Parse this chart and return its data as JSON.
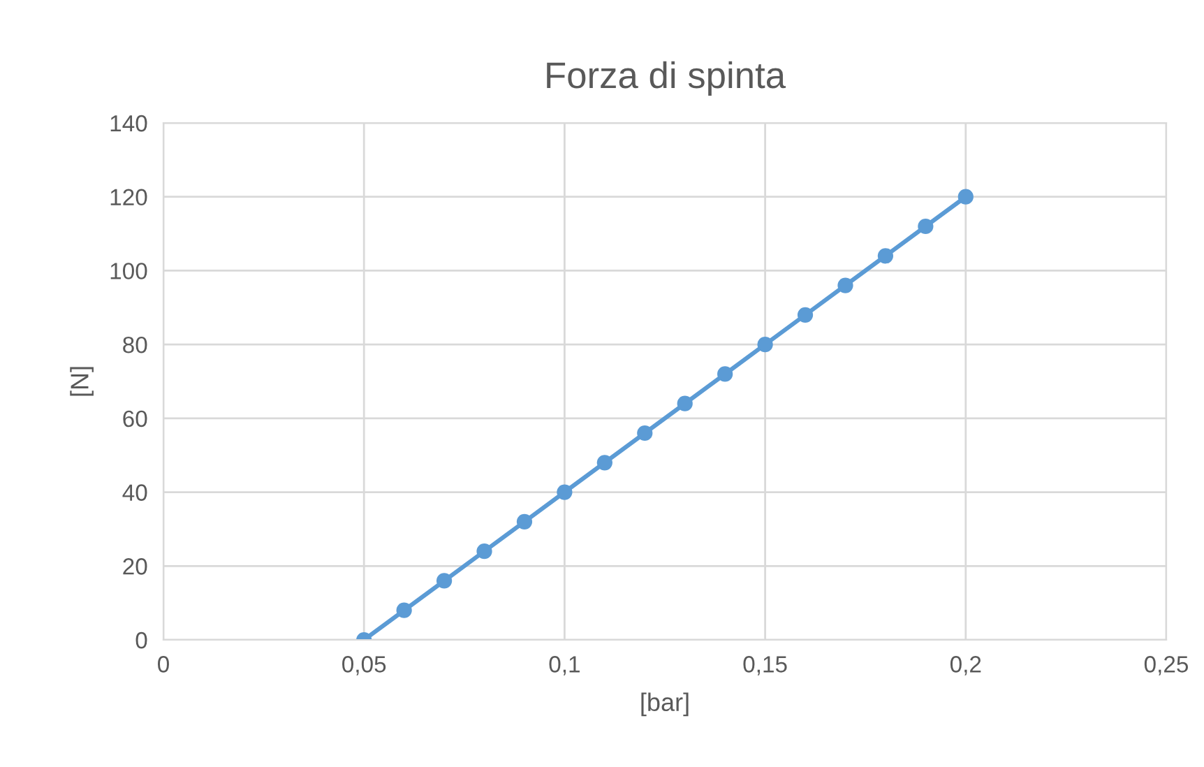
{
  "chart_data": {
    "type": "line",
    "title": "Forza di spinta",
    "xlabel": "[bar]",
    "ylabel": "[N]",
    "x": [
      0.05,
      0.06,
      0.07,
      0.08,
      0.09,
      0.1,
      0.11,
      0.12,
      0.13,
      0.14,
      0.15,
      0.16,
      0.17,
      0.18,
      0.19,
      0.2
    ],
    "series": [
      {
        "color": "#5b9bd5",
        "values": [
          0,
          8,
          16,
          24,
          32,
          40,
          48,
          56,
          64,
          72,
          80,
          88,
          96,
          104,
          112,
          120
        ]
      }
    ],
    "xlim": [
      0,
      0.25
    ],
    "xticks": [
      0,
      {
        "value": 0.05,
        "label": "0,05"
      },
      {
        "value": 0.1,
        "label": "0,1"
      },
      {
        "value": 0.15,
        "label": "0,15"
      },
      {
        "value": 0.2,
        "label": "0,2"
      },
      {
        "value": 0.25,
        "label": "0,25"
      }
    ],
    "ylim": [
      0,
      140
    ],
    "yticks": [
      0,
      20,
      40,
      60,
      80,
      100,
      120,
      140
    ],
    "grid": true,
    "marker": "circle",
    "line_style": "solid"
  }
}
